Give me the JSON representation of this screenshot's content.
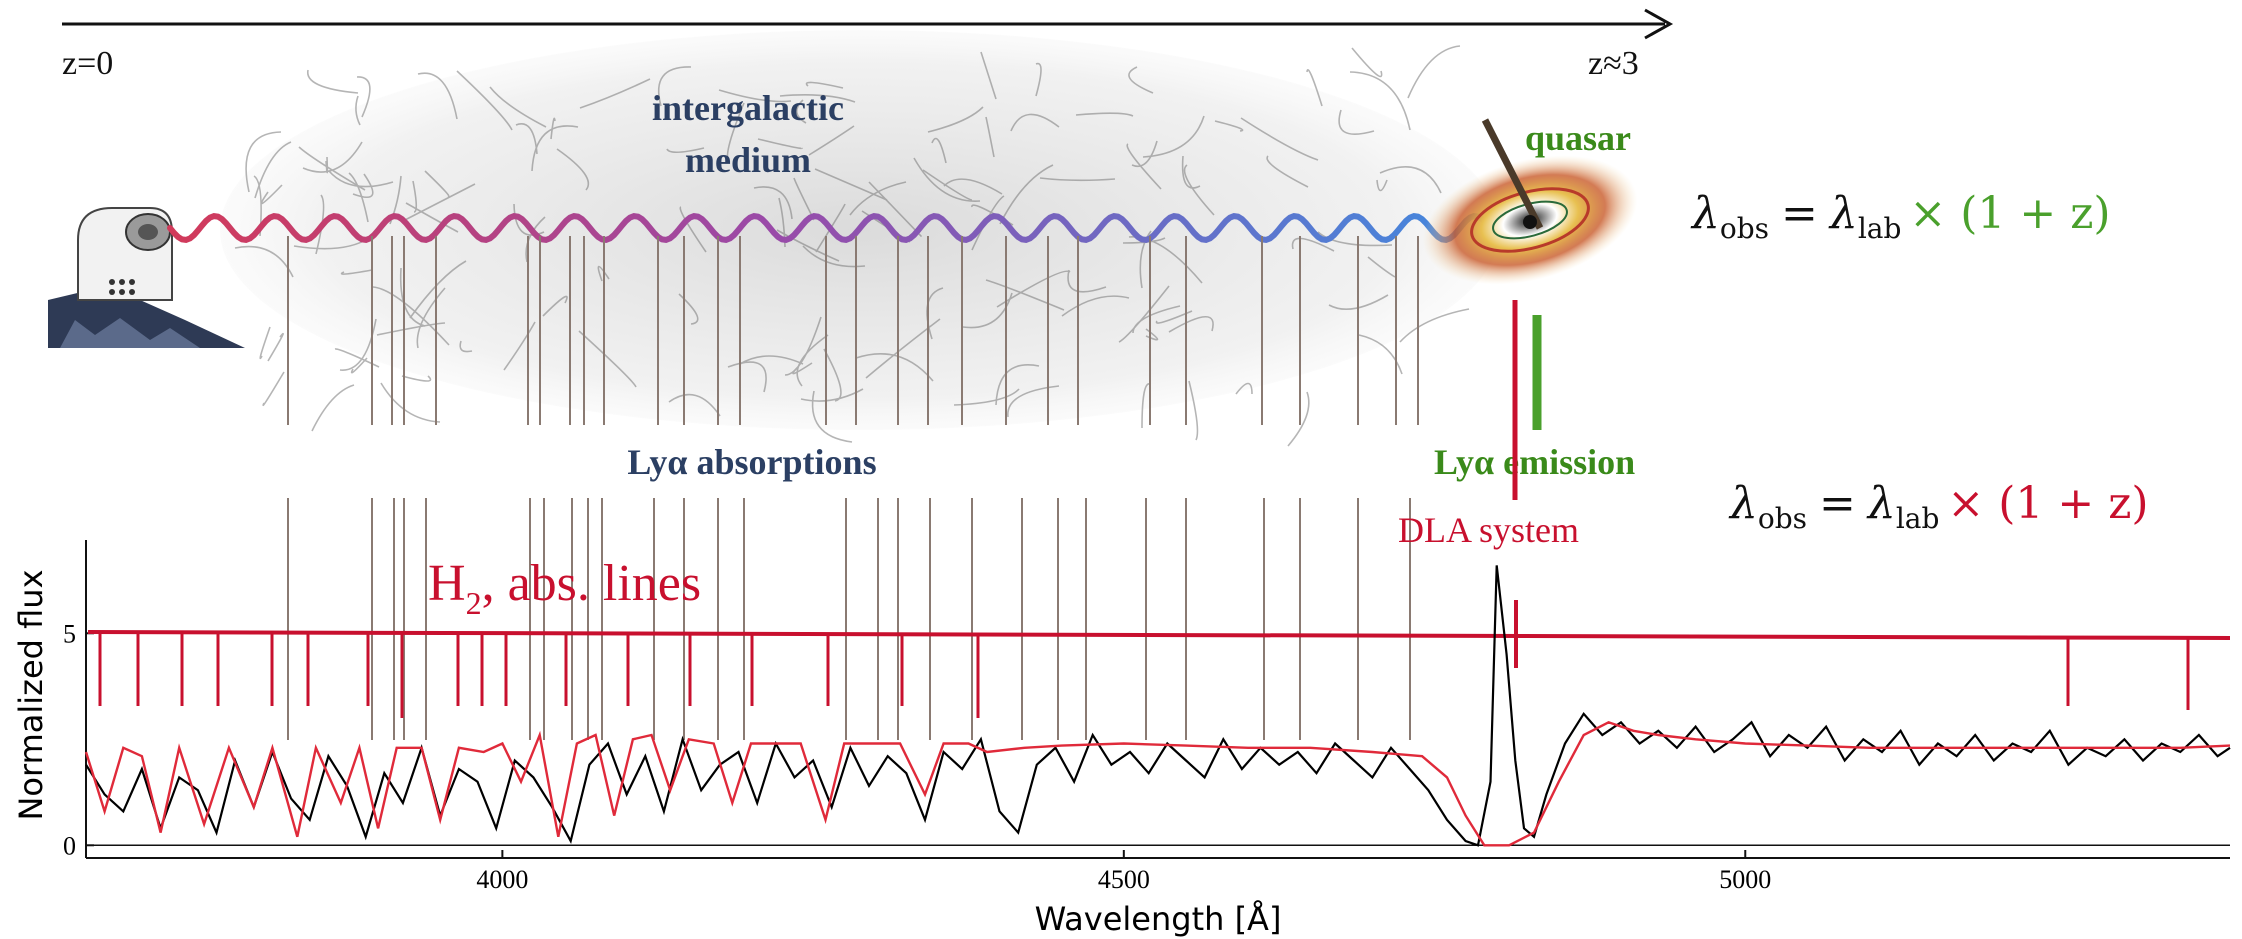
{
  "timeline": {
    "left_label": "z=0",
    "right_label": "z≈3"
  },
  "igm_label": {
    "line1": "intergalactic",
    "line2": "medium"
  },
  "quasar_label": "quasar",
  "lya_absorptions_label": "Lyα absorptions",
  "lya_emission_label": "Lyα emission",
  "dla_label": "DLA system",
  "h2_label": {
    "base": "H",
    "sub": "2",
    "rest": ", abs. lines"
  },
  "formula_green": {
    "lambda": "λ",
    "sub_obs": "obs",
    "eq": "=",
    "sub_lab": "lab",
    "rest": "× (1 + z)",
    "color": "#4aa02c"
  },
  "formula_red": {
    "lambda": "λ",
    "sub_obs": "obs",
    "eq": "=",
    "sub_lab": "lab",
    "rest": "× (1 + z)",
    "color": "#c8102e"
  },
  "colors": {
    "h2": "#c8102e",
    "dla": "#c8102e",
    "quasar": "#3a8a1a",
    "igm_text": "#2b3f63",
    "emission": "#3a8a1a",
    "model": "#e02a3a",
    "spectrum": "#000000",
    "wave_start": "#d23a5a",
    "wave_end": "#3f8be0"
  },
  "chart_data": {
    "type": "line",
    "xlabel": "Wavelength [Å]",
    "ylabel": "Normalized flux",
    "xlim": [
      3665,
      5390
    ],
    "ylim": [
      -0.3,
      7.2
    ],
    "x_ticks": [
      4000,
      4500,
      5000
    ],
    "y_ticks": [
      0,
      5
    ],
    "grid": false,
    "series": [
      {
        "points": [
          [
            3665,
            1.9
          ],
          [
            3680,
            1.2
          ],
          [
            3695,
            0.8
          ],
          [
            3710,
            1.8
          ],
          [
            3725,
            0.4
          ],
          [
            3740,
            1.6
          ],
          [
            3755,
            1.3
          ],
          [
            3770,
            0.3
          ],
          [
            3785,
            2.0
          ],
          [
            3800,
            0.9
          ],
          [
            3815,
            2.2
          ],
          [
            3830,
            1.1
          ],
          [
            3845,
            0.6
          ],
          [
            3860,
            2.1
          ],
          [
            3875,
            1.4
          ],
          [
            3890,
            0.2
          ],
          [
            3905,
            1.7
          ],
          [
            3920,
            1.0
          ],
          [
            3935,
            2.3
          ],
          [
            3950,
            0.7
          ],
          [
            3965,
            1.8
          ],
          [
            3980,
            1.5
          ],
          [
            3995,
            0.4
          ],
          [
            4010,
            2.0
          ],
          [
            4025,
            1.6
          ],
          [
            4040,
            0.9
          ],
          [
            4055,
            0.1
          ],
          [
            4070,
            1.9
          ],
          [
            4085,
            2.4
          ],
          [
            4100,
            1.2
          ],
          [
            4115,
            2.1
          ],
          [
            4130,
            0.8
          ],
          [
            4145,
            2.5
          ],
          [
            4160,
            1.3
          ],
          [
            4175,
            1.9
          ],
          [
            4190,
            2.2
          ],
          [
            4205,
            1.0
          ],
          [
            4220,
            2.4
          ],
          [
            4235,
            1.6
          ],
          [
            4250,
            2.0
          ],
          [
            4265,
            0.9
          ],
          [
            4280,
            2.3
          ],
          [
            4295,
            1.4
          ],
          [
            4310,
            2.1
          ],
          [
            4325,
            1.7
          ],
          [
            4340,
            0.6
          ],
          [
            4355,
            2.2
          ],
          [
            4370,
            1.8
          ],
          [
            4385,
            2.5
          ],
          [
            4400,
            0.8
          ],
          [
            4415,
            0.3
          ],
          [
            4430,
            1.9
          ],
          [
            4445,
            2.3
          ],
          [
            4460,
            1.5
          ],
          [
            4475,
            2.6
          ],
          [
            4490,
            1.9
          ],
          [
            4505,
            2.2
          ],
          [
            4520,
            1.7
          ],
          [
            4535,
            2.4
          ],
          [
            4550,
            2.0
          ],
          [
            4565,
            1.6
          ],
          [
            4580,
            2.5
          ],
          [
            4595,
            1.8
          ],
          [
            4610,
            2.3
          ],
          [
            4625,
            1.9
          ],
          [
            4640,
            2.2
          ],
          [
            4655,
            1.7
          ],
          [
            4670,
            2.4
          ],
          [
            4685,
            2.0
          ],
          [
            4700,
            1.6
          ],
          [
            4715,
            2.3
          ],
          [
            4730,
            1.8
          ],
          [
            4745,
            1.3
          ],
          [
            4760,
            0.6
          ],
          [
            4775,
            0.1
          ],
          [
            4785,
            0.0
          ],
          [
            4795,
            1.5
          ],
          [
            4800,
            6.6
          ],
          [
            4808,
            4.5
          ],
          [
            4815,
            2.0
          ],
          [
            4822,
            0.4
          ],
          [
            4830,
            0.2
          ],
          [
            4840,
            1.2
          ],
          [
            4855,
            2.4
          ],
          [
            4870,
            3.1
          ],
          [
            4885,
            2.6
          ],
          [
            4900,
            2.9
          ],
          [
            4915,
            2.4
          ],
          [
            4930,
            2.7
          ],
          [
            4945,
            2.3
          ],
          [
            4960,
            2.8
          ],
          [
            4975,
            2.2
          ],
          [
            4990,
            2.5
          ],
          [
            5005,
            2.9
          ],
          [
            5020,
            2.1
          ],
          [
            5035,
            2.6
          ],
          [
            5050,
            2.3
          ],
          [
            5065,
            2.8
          ],
          [
            5080,
            2.0
          ],
          [
            5095,
            2.5
          ],
          [
            5110,
            2.2
          ],
          [
            5125,
            2.7
          ],
          [
            5140,
            1.9
          ],
          [
            5155,
            2.4
          ],
          [
            5170,
            2.1
          ],
          [
            5185,
            2.6
          ],
          [
            5200,
            2.0
          ],
          [
            5215,
            2.4
          ],
          [
            5230,
            2.2
          ],
          [
            5245,
            2.7
          ],
          [
            5260,
            1.9
          ],
          [
            5275,
            2.3
          ],
          [
            5290,
            2.1
          ],
          [
            5305,
            2.5
          ],
          [
            5320,
            2.0
          ],
          [
            5335,
            2.4
          ],
          [
            5350,
            2.2
          ],
          [
            5365,
            2.6
          ],
          [
            5380,
            2.1
          ],
          [
            5390,
            2.3
          ]
        ]
      },
      {
        "points": [
          [
            3665,
            2.2
          ],
          [
            3680,
            0.8
          ],
          [
            3695,
            2.3
          ],
          [
            3710,
            2.1
          ],
          [
            3725,
            0.3
          ],
          [
            3740,
            2.3
          ],
          [
            3760,
            0.5
          ],
          [
            3780,
            2.3
          ],
          [
            3800,
            0.9
          ],
          [
            3815,
            2.3
          ],
          [
            3835,
            0.2
          ],
          [
            3850,
            2.3
          ],
          [
            3870,
            1.0
          ],
          [
            3885,
            2.3
          ],
          [
            3900,
            0.4
          ],
          [
            3915,
            2.3
          ],
          [
            3935,
            2.3
          ],
          [
            3950,
            0.6
          ],
          [
            3965,
            2.3
          ],
          [
            3985,
            2.2
          ],
          [
            4000,
            2.4
          ],
          [
            4015,
            1.5
          ],
          [
            4030,
            2.6
          ],
          [
            4045,
            0.2
          ],
          [
            4060,
            2.4
          ],
          [
            4075,
            2.6
          ],
          [
            4090,
            0.7
          ],
          [
            4105,
            2.5
          ],
          [
            4120,
            2.6
          ],
          [
            4135,
            1.3
          ],
          [
            4150,
            2.5
          ],
          [
            4170,
            2.4
          ],
          [
            4185,
            1.0
          ],
          [
            4200,
            2.4
          ],
          [
            4220,
            2.4
          ],
          [
            4240,
            2.4
          ],
          [
            4260,
            0.6
          ],
          [
            4275,
            2.4
          ],
          [
            4300,
            2.4
          ],
          [
            4320,
            2.4
          ],
          [
            4340,
            1.2
          ],
          [
            4355,
            2.4
          ],
          [
            4375,
            2.4
          ],
          [
            4390,
            2.2
          ],
          [
            4420,
            2.3
          ],
          [
            4450,
            2.35
          ],
          [
            4500,
            2.4
          ],
          [
            4550,
            2.35
          ],
          [
            4600,
            2.3
          ],
          [
            4650,
            2.3
          ],
          [
            4700,
            2.2
          ],
          [
            4740,
            2.1
          ],
          [
            4760,
            1.6
          ],
          [
            4775,
            0.7
          ],
          [
            4790,
            0.0
          ],
          [
            4810,
            0.0
          ],
          [
            4830,
            0.3
          ],
          [
            4850,
            1.5
          ],
          [
            4870,
            2.6
          ],
          [
            4890,
            2.9
          ],
          [
            4910,
            2.7
          ],
          [
            4930,
            2.6
          ],
          [
            4960,
            2.5
          ],
          [
            5000,
            2.4
          ],
          [
            5050,
            2.35
          ],
          [
            5100,
            2.3
          ],
          [
            5150,
            2.3
          ],
          [
            5200,
            2.3
          ],
          [
            5250,
            2.3
          ],
          [
            5300,
            2.3
          ],
          [
            5350,
            2.3
          ],
          [
            5390,
            2.35
          ]
        ]
      }
    ]
  }
}
